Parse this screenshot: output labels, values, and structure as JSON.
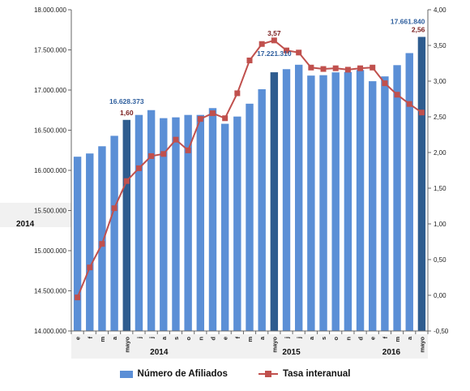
{
  "chart_data": {
    "type": "bar",
    "categories": [
      "e",
      "f",
      "m",
      "a",
      "mayo",
      "j",
      "j",
      "a",
      "s",
      "o",
      "n",
      "d",
      "e",
      "f",
      "m",
      "a",
      "mayo",
      "j",
      "j",
      "a",
      "s",
      "o",
      "n",
      "d",
      "e",
      "f",
      "m",
      "a",
      "mayo"
    ],
    "year_groups": [
      {
        "label": "2014",
        "start": 0,
        "end": 11
      },
      {
        "label": "2015",
        "start": 12,
        "end": 23
      },
      {
        "label": "2016",
        "start": 24,
        "end": 28
      }
    ],
    "side_label": "2014",
    "series": [
      {
        "name": "Número de Afiliados",
        "axis": "left",
        "values": [
          16170000,
          16210000,
          16300000,
          16430000,
          16628373,
          16690000,
          16750000,
          16650000,
          16660000,
          16690000,
          16690000,
          16775000,
          16580000,
          16670000,
          16830000,
          17010000,
          17221310,
          17260000,
          17315000,
          17180000,
          17185000,
          17220000,
          17225000,
          17250000,
          17110000,
          17170000,
          17310000,
          17460000,
          17661840
        ],
        "highlight": [
          4,
          16,
          28
        ]
      },
      {
        "name": "Tasa interanual",
        "axis": "right",
        "values": [
          -0.03,
          0.39,
          0.72,
          1.22,
          1.6,
          1.78,
          1.95,
          1.98,
          2.18,
          2.03,
          2.47,
          2.55,
          2.48,
          2.83,
          3.29,
          3.52,
          3.57,
          3.43,
          3.4,
          3.19,
          3.17,
          3.18,
          3.16,
          3.18,
          3.19,
          2.97,
          2.81,
          2.68,
          2.56
        ]
      }
    ],
    "annotations": [
      {
        "index": 4,
        "series": 0,
        "text": "16.628.373"
      },
      {
        "index": 4,
        "series": 1,
        "text": "1,60"
      },
      {
        "index": 16,
        "series": 0,
        "text": "17.221.310"
      },
      {
        "index": 16,
        "series": 1,
        "text": "3,57"
      },
      {
        "index": 28,
        "series": 0,
        "text": "17.661.840"
      },
      {
        "index": 28,
        "series": 1,
        "text": "2,56"
      }
    ],
    "y_left": {
      "min": 14000000,
      "max": 18000000,
      "ticks": [
        14000000,
        14500000,
        15000000,
        15500000,
        16000000,
        16500000,
        17000000,
        17500000,
        18000000
      ],
      "tick_labels": [
        "14.000.000",
        "14.500.000",
        "15.000.000",
        "15.500.000",
        "16.000.000",
        "16.500.000",
        "17.000.000",
        "17.500.000",
        "18.000.000"
      ]
    },
    "y_right": {
      "min": -0.5,
      "max": 4.0,
      "ticks": [
        -0.5,
        0,
        0.5,
        1,
        1.5,
        2,
        2.5,
        3,
        3.5,
        4
      ],
      "tick_labels": [
        "-0,50",
        "0,00",
        "0,50",
        "1,00",
        "1,50",
        "2,00",
        "2,50",
        "3,00",
        "3,50",
        "4,00"
      ]
    },
    "colors": {
      "bar": "#5b8fd6",
      "bar_highlight": "#2e5c8f",
      "line": "#c0504d",
      "ann_blue": "#2f5f9e",
      "ann_red": "#7b1f1f"
    },
    "grid": false,
    "legend_position": "bottom",
    "legend": [
      "Número de Afiliados",
      "Tasa interanual"
    ]
  }
}
